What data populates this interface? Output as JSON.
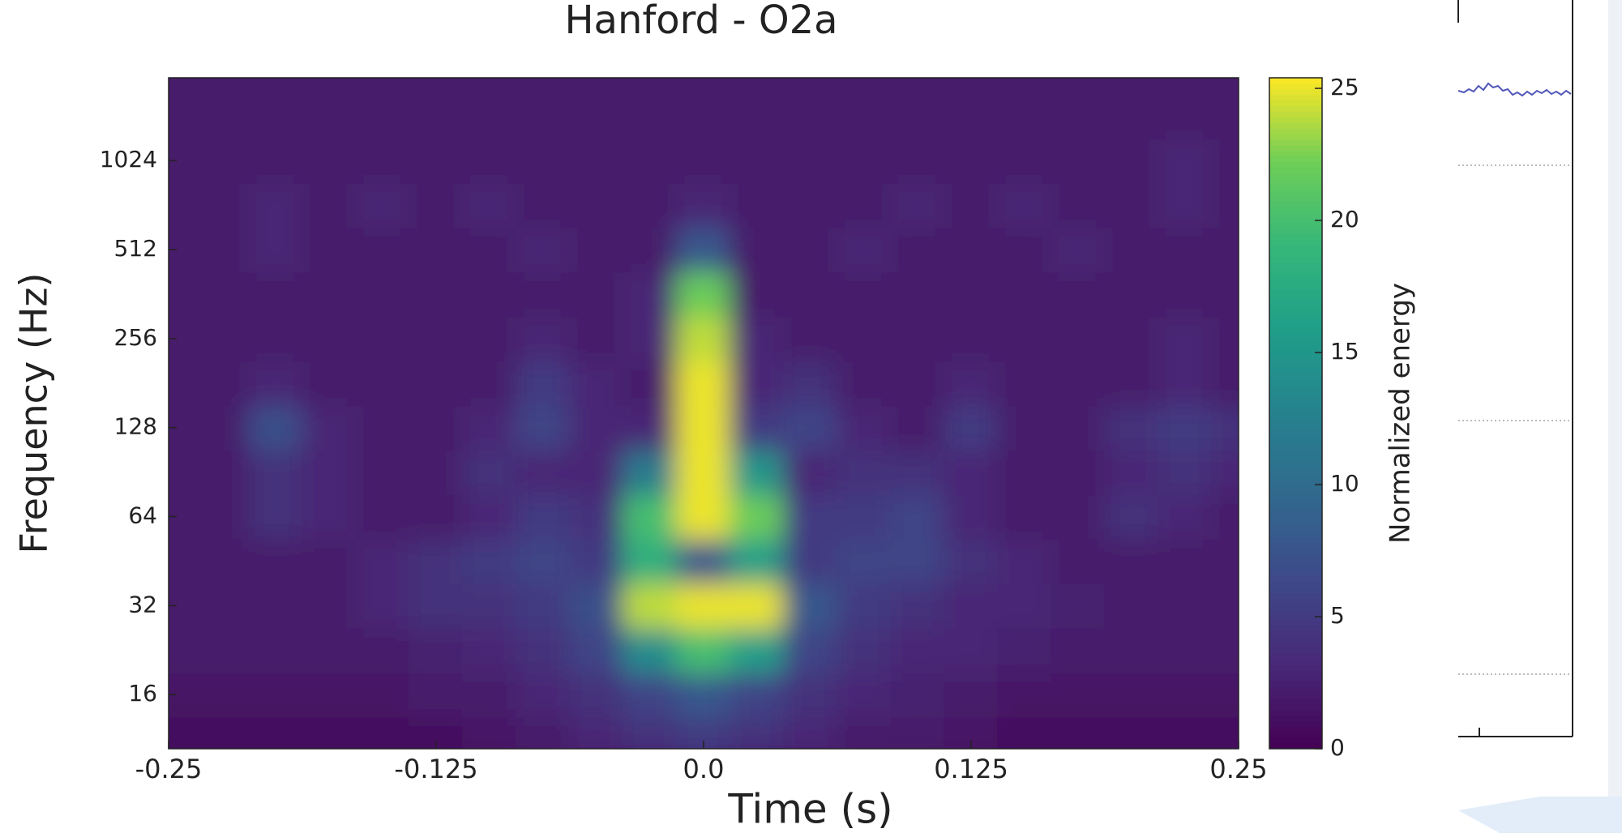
{
  "chart_data": {
    "type": "heatmap",
    "title": "Hanford - O2a",
    "x_label": "Time (s)",
    "y_label": "Frequency (Hz)",
    "colorbar_label": "Normalized energy",
    "colormap": "viridis",
    "y_scale": "log2",
    "xlim": [
      -0.25,
      0.25
    ],
    "ylim": [
      10.5,
      1950
    ],
    "zlim": [
      0,
      25.4
    ],
    "xticks": [
      -0.25,
      -0.125,
      {
        "value": 0,
        "label": "0.0"
      },
      0.125,
      0.25
    ],
    "yticks": [
      16,
      32,
      64,
      128,
      256,
      512,
      1024
    ],
    "zticks": [
      0,
      5,
      10,
      15,
      20,
      25
    ],
    "x": [
      -0.25,
      -0.225,
      -0.2,
      -0.175,
      -0.15,
      -0.125,
      -0.1,
      -0.075,
      -0.05,
      -0.025,
      0,
      0.025,
      0.05,
      0.075,
      0.1,
      0.125,
      0.15,
      0.175,
      0.2,
      0.225,
      0.25
    ],
    "y": [
      11.3,
      16,
      22.6,
      32,
      45.3,
      64,
      90.5,
      128,
      181,
      256,
      362,
      512,
      724,
      1024,
      1448,
      2048
    ],
    "z": [
      [
        1,
        1,
        1,
        1,
        1,
        1,
        1.5,
        2,
        3,
        4,
        5,
        4,
        3,
        2,
        2,
        1.5,
        1,
        1,
        1,
        1,
        1
      ],
      [
        1.5,
        1.5,
        1.5,
        1.5,
        1.5,
        2,
        2,
        3,
        4,
        6,
        8,
        6,
        4,
        3,
        2.5,
        2,
        1.5,
        1.5,
        1.5,
        1.5,
        1.5
      ],
      [
        2,
        2,
        2,
        2,
        2,
        2.5,
        3,
        4,
        6,
        14,
        20,
        16,
        6,
        4,
        3,
        3,
        2.5,
        2,
        2,
        2,
        2
      ],
      [
        2,
        2,
        2,
        2,
        3,
        4,
        4,
        5,
        7,
        24,
        25,
        25,
        8,
        5,
        4,
        3,
        3,
        2.5,
        2,
        2,
        2
      ],
      [
        2,
        2,
        2,
        2,
        3,
        4,
        5,
        6,
        5,
        18,
        8,
        16,
        5,
        6,
        6,
        4,
        3,
        2,
        2,
        2,
        2
      ],
      [
        2,
        2,
        4,
        3,
        2,
        2,
        3,
        5,
        4,
        20,
        25,
        22,
        5,
        5,
        6,
        3,
        2,
        2,
        4,
        3,
        2
      ],
      [
        2,
        2,
        4,
        3,
        2,
        2,
        4,
        3,
        3,
        12,
        25,
        15,
        3,
        4,
        4,
        3,
        2,
        2,
        3,
        4,
        3
      ],
      [
        2,
        2,
        7,
        3,
        2,
        2,
        3,
        6,
        3,
        3,
        25,
        5,
        6,
        3,
        2,
        5,
        2,
        2,
        4,
        5,
        4
      ],
      [
        2,
        2,
        3,
        2,
        2,
        2,
        2,
        5,
        3,
        2,
        25,
        3,
        4,
        2,
        2,
        3,
        2,
        2,
        2,
        3,
        2
      ],
      [
        2,
        2,
        2,
        2,
        2,
        2,
        2,
        3,
        2,
        3,
        24,
        3,
        2,
        2,
        2,
        2,
        2,
        2,
        2,
        3,
        2
      ],
      [
        2,
        2,
        2,
        2,
        2,
        2,
        2,
        2,
        2,
        3,
        22,
        2,
        2,
        2,
        2,
        2,
        2,
        2,
        2,
        2,
        2
      ],
      [
        2,
        2,
        3,
        2,
        2,
        2,
        2,
        3,
        2,
        2,
        8,
        2,
        2,
        3,
        2,
        2,
        2,
        3,
        2,
        2,
        2
      ],
      [
        2,
        2,
        3,
        2,
        3,
        2,
        3,
        2,
        2,
        2,
        3,
        2,
        2,
        2,
        3,
        2,
        3,
        2,
        2,
        3,
        2
      ],
      [
        2,
        2,
        2,
        2,
        2,
        2,
        2,
        2,
        2,
        2,
        2,
        2,
        2,
        2,
        2,
        2,
        2,
        2,
        2,
        3,
        2
      ],
      [
        2,
        2,
        2,
        2,
        2,
        2,
        2,
        2,
        2,
        2,
        2,
        2,
        2,
        2,
        2,
        2,
        2,
        2,
        2,
        2,
        2
      ],
      [
        2,
        2,
        2,
        2,
        2,
        2,
        2,
        2,
        2,
        2,
        2,
        2,
        2,
        2,
        2,
        2,
        2,
        2,
        2,
        2,
        2
      ]
    ]
  }
}
